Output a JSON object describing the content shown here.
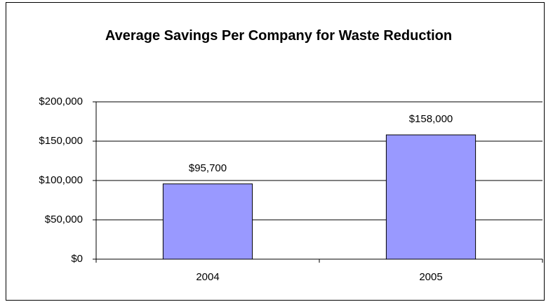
{
  "chart_data": {
    "type": "bar",
    "title": "Average Savings Per Company for Waste Reduction",
    "categories": [
      "2004",
      "2005"
    ],
    "values": [
      95700,
      158000
    ],
    "value_labels": [
      "$95,700",
      "$158,000"
    ],
    "color": "#9999ff",
    "ylim": [
      0,
      200000
    ],
    "yticks": [
      {
        "value": 0,
        "label": "$0"
      },
      {
        "value": 50000,
        "label": "$50,000"
      },
      {
        "value": 100000,
        "label": "$100,000"
      },
      {
        "value": 150000,
        "label": "$150,000"
      },
      {
        "value": 200000,
        "label": "$200,000"
      }
    ],
    "grid": true
  }
}
